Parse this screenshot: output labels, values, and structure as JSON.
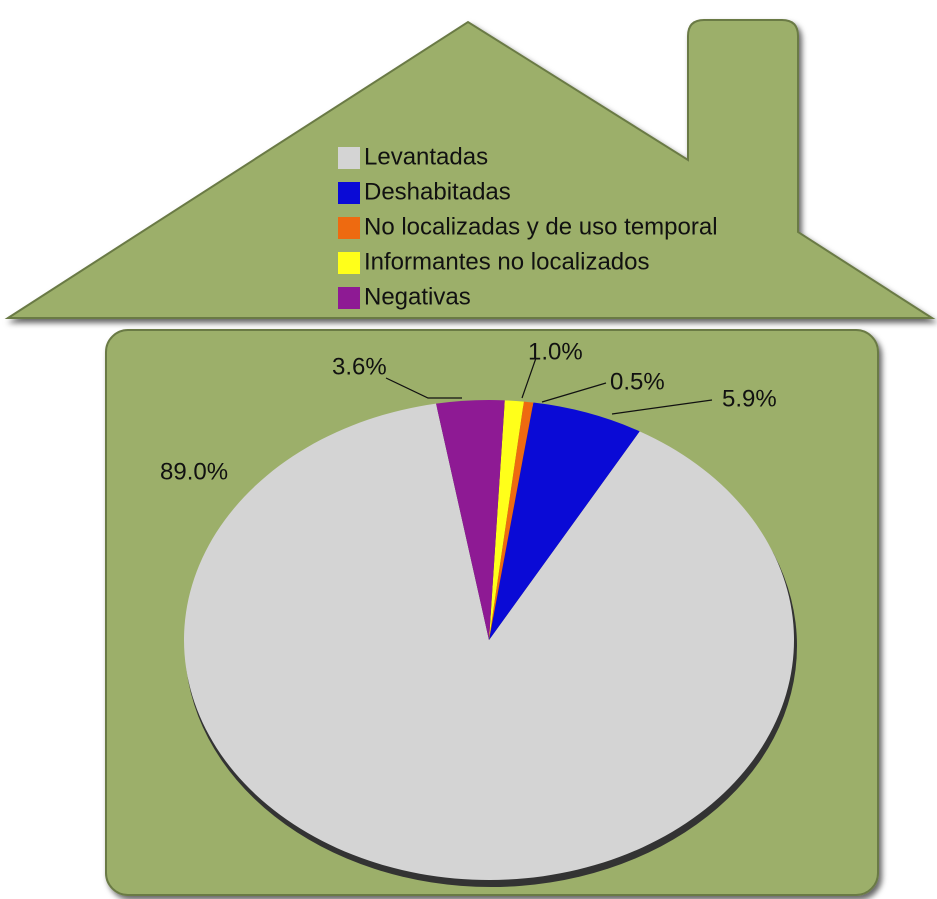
{
  "chart_data": {
    "type": "pie",
    "categories": [
      "Levantadas",
      "Deshabitadas",
      "No localizadas y de uso temporal",
      "Informantes no localizados",
      "Negativas"
    ],
    "values": [
      89.0,
      5.9,
      0.5,
      1.0,
      3.6
    ],
    "value_labels": [
      "89.0%",
      "5.9%",
      "0.5%",
      "1.0%",
      "3.6%"
    ],
    "colors": [
      "#d4d4d4",
      "#0a0ad6",
      "#ee6a10",
      "#ffff1a",
      "#8e1a94"
    ]
  }
}
